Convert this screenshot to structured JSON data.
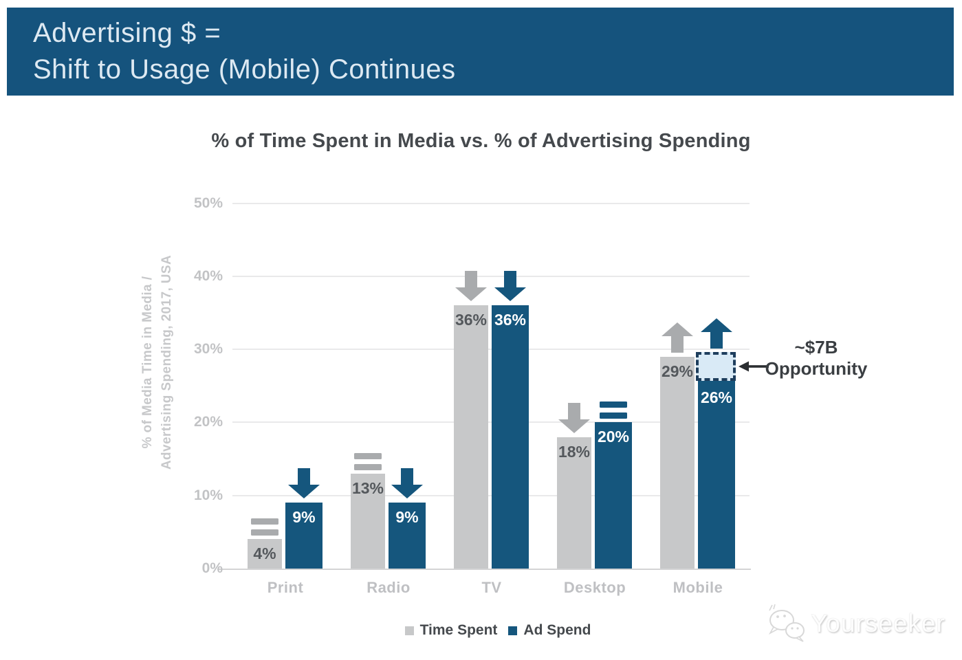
{
  "banner": {
    "line1": "Advertising $ =",
    "line2": "Shift to Usage (Mobile) Continues",
    "bg_color": "#15537d",
    "text_color": "#dde9f2"
  },
  "chart_data": {
    "type": "bar",
    "title": "% of Time Spent in Media vs. % of Advertising Spending",
    "ylabel_line1": "% of Media Time in Media /",
    "ylabel_line2": "Advertising Spending, 2017, USA",
    "categories": [
      "Print",
      "Radio",
      "TV",
      "Desktop",
      "Mobile"
    ],
    "series": [
      {
        "name": "Time Spent",
        "color": "#c7c8c9",
        "marker_color": "#a9abad",
        "label_color": "#54585c",
        "values": [
          4,
          13,
          36,
          18,
          29
        ],
        "labels": [
          "4%",
          "13%",
          "36%",
          "18%",
          "29%"
        ],
        "trend_markers": [
          "equals",
          "equals",
          "down-arrow",
          "down-arrow",
          "up-arrow"
        ]
      },
      {
        "name": "Ad Spend",
        "color": "#15567d",
        "marker_color": "#15567d",
        "label_color": "#ffffff",
        "values": [
          9,
          9,
          36,
          20,
          26
        ],
        "labels": [
          "9%",
          "9%",
          "36%",
          "20%",
          "26%"
        ],
        "trend_markers": [
          "down-arrow",
          "down-arrow",
          "down-arrow",
          "equals",
          "up-arrow"
        ]
      }
    ],
    "y_ticks": [
      "0%",
      "10%",
      "20%",
      "30%",
      "40%",
      "50%"
    ],
    "ylim": [
      0,
      50
    ],
    "grid": true,
    "legend_position": "bottom",
    "annotation": {
      "line1": "~$7B",
      "line2": "Opportunity",
      "category": "Mobile",
      "series": "Ad Spend",
      "gap_from_pct": 26,
      "gap_to_pct": 29,
      "box_fill": "#d9eaf6",
      "box_border": "#1e3e5d"
    }
  },
  "watermark": {
    "text": "Yourseeker"
  }
}
